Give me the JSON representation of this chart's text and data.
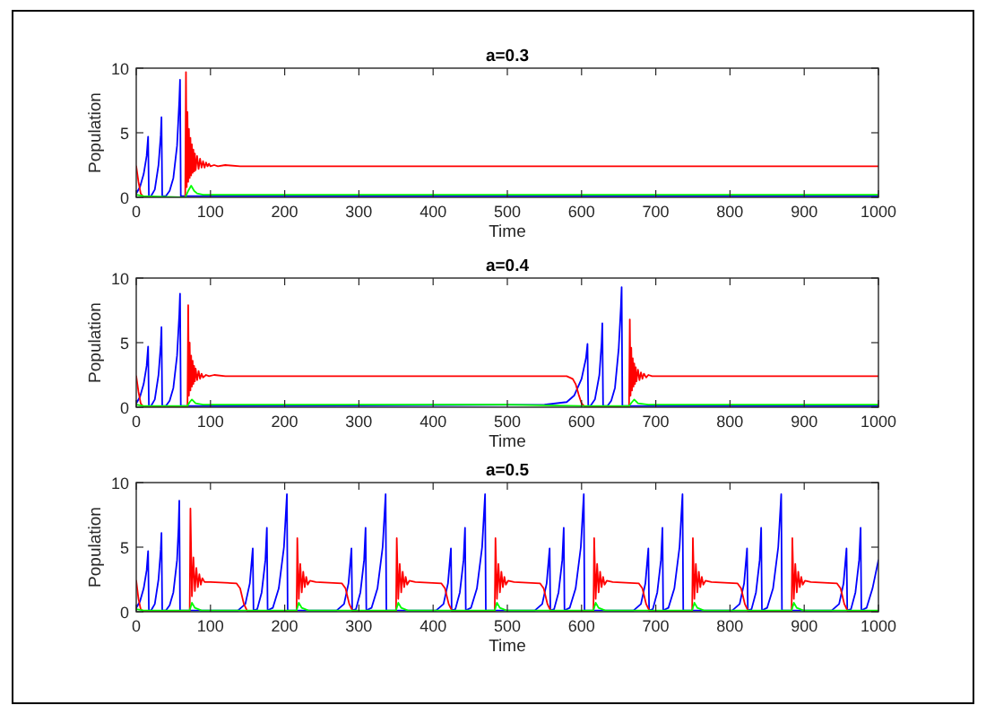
{
  "chart_data": [
    {
      "type": "line",
      "title": "a=0.3",
      "xlabel": "Time",
      "ylabel": "Population",
      "xlim": [
        0,
        1000
      ],
      "ylim": [
        0,
        10
      ],
      "xticks": [
        0,
        100,
        200,
        300,
        400,
        500,
        600,
        700,
        800,
        900,
        1000
      ],
      "yticks": [
        0,
        5,
        10
      ],
      "series": [
        {
          "color": "#0000ff",
          "x": [
            0,
            5,
            10,
            14,
            16,
            17,
            20,
            25,
            30,
            33,
            34,
            35,
            40,
            45,
            50,
            55,
            58,
            59,
            60,
            70,
            100,
            1000
          ],
          "values": [
            0.3,
            0.8,
            1.8,
            3.2,
            4.7,
            0.1,
            0.1,
            0.6,
            2.5,
            4.8,
            6.2,
            0.1,
            0.1,
            0.5,
            1.5,
            4,
            7.5,
            9.1,
            0.1,
            0.1,
            0.1,
            0.1
          ]
        },
        {
          "color": "#ff0000",
          "x": [
            0,
            3,
            6,
            10,
            66,
            67,
            68,
            69,
            70,
            71,
            72,
            73,
            74,
            75,
            76,
            77,
            78,
            79,
            80,
            82,
            84,
            86,
            88,
            90,
            92,
            94,
            96,
            98,
            100,
            105,
            110,
            120,
            140,
            1000
          ],
          "values": [
            2.4,
            1.2,
            0.3,
            0,
            0,
            9.7,
            0.8,
            6.6,
            1.2,
            5.3,
            1.5,
            4.6,
            1.7,
            4.1,
            1.9,
            3.7,
            2,
            3.4,
            2.1,
            3.2,
            2.2,
            3,
            2.3,
            2.8,
            2.3,
            2.7,
            2.4,
            2.6,
            2.4,
            2.5,
            2.4,
            2.5,
            2.4,
            2.4
          ]
        },
        {
          "color": "#00ff00",
          "x": [
            0,
            10,
            60,
            66,
            70,
            74,
            78,
            82,
            90,
            100,
            1000
          ],
          "values": [
            0.2,
            0.1,
            0,
            0,
            0.5,
            0.9,
            0.5,
            0.3,
            0.2,
            0.2,
            0.2
          ]
        }
      ]
    },
    {
      "type": "line",
      "title": "a=0.4",
      "xlabel": "Time",
      "ylabel": "Population",
      "xlim": [
        0,
        1000
      ],
      "ylim": [
        0,
        10
      ],
      "xticks": [
        0,
        100,
        200,
        300,
        400,
        500,
        600,
        700,
        800,
        900,
        1000
      ],
      "yticks": [
        0,
        5,
        10
      ],
      "series": [
        {
          "color": "#0000ff",
          "x": [
            0,
            5,
            10,
            14,
            16,
            17,
            20,
            25,
            30,
            33,
            34,
            35,
            40,
            45,
            50,
            55,
            58,
            59,
            60,
            70,
            100,
            550,
            580,
            590,
            600,
            606,
            608,
            609,
            612,
            618,
            624,
            627,
            628,
            629,
            635,
            640,
            645,
            650,
            653,
            654,
            655,
            665,
            700,
            1000
          ],
          "values": [
            0.3,
            0.8,
            1.8,
            3.2,
            4.7,
            0.1,
            0.1,
            0.6,
            2.5,
            4.8,
            6.2,
            0.1,
            0.1,
            0.5,
            1.5,
            4,
            7.2,
            8.8,
            0.1,
            0.1,
            0.1,
            0.2,
            0.4,
            0.9,
            2.2,
            3.8,
            4.9,
            0.1,
            0.1,
            0.6,
            2.5,
            5,
            6.5,
            0.1,
            0.1,
            0.5,
            1.5,
            4.5,
            7.8,
            9.3,
            0.1,
            0.1,
            0.1,
            0.1
          ]
        },
        {
          "color": "#ff0000",
          "x": [
            0,
            3,
            6,
            10,
            69,
            70,
            71,
            72,
            73,
            74,
            75,
            76,
            77,
            78,
            79,
            80,
            82,
            84,
            86,
            88,
            90,
            94,
            98,
            105,
            120,
            500,
            580,
            588,
            592,
            596,
            600,
            605,
            664,
            665,
            666,
            667,
            668,
            669,
            670,
            671,
            672,
            673,
            674,
            676,
            678,
            680,
            682,
            684,
            687,
            690,
            695,
            700,
            720,
            1000
          ],
          "values": [
            2.4,
            1.2,
            0.3,
            0,
            0,
            7.9,
            0.9,
            5,
            1.3,
            4,
            1.6,
            3.6,
            1.8,
            3.2,
            2,
            3,
            2.1,
            2.8,
            2.2,
            2.6,
            2.3,
            2.5,
            2.4,
            2.5,
            2.4,
            2.4,
            2.4,
            2.2,
            1.8,
            1,
            0.3,
            0,
            0,
            6.8,
            0.9,
            4.6,
            1.3,
            3.8,
            1.6,
            3.4,
            1.8,
            3.1,
            2,
            2.9,
            2.1,
            2.7,
            2.2,
            2.6,
            2.3,
            2.5,
            2.4,
            2.4,
            2.4,
            2.4
          ]
        },
        {
          "color": "#00ff00",
          "x": [
            0,
            10,
            69,
            72,
            75,
            80,
            90,
            500,
            600,
            664,
            668,
            671,
            676,
            690,
            1000
          ],
          "values": [
            0.2,
            0.1,
            0.1,
            0.4,
            0.6,
            0.3,
            0.2,
            0.2,
            0.1,
            0.1,
            0.4,
            0.6,
            0.3,
            0.2,
            0.2
          ]
        }
      ]
    },
    {
      "type": "line",
      "title": "a=0.5",
      "xlabel": "Time",
      "ylabel": "Population",
      "xlim": [
        0,
        1000
      ],
      "ylim": [
        0,
        10
      ],
      "xticks": [
        0,
        100,
        200,
        300,
        400,
        500,
        600,
        700,
        800,
        900,
        1000
      ],
      "yticks": [
        0,
        5,
        10
      ],
      "series": [
        {
          "color": "#0000ff",
          "x": [
            0,
            5,
            10,
            14,
            16,
            17,
            20,
            25,
            30,
            33,
            34,
            35,
            40,
            45,
            50,
            55,
            57,
            58,
            59,
            137,
            147,
            153,
            157,
            158,
            163,
            169,
            174,
            176,
            177,
            184,
            192,
            199,
            203,
            204,
            270,
            280,
            286,
            290,
            291,
            296,
            302,
            307,
            309,
            310,
            317,
            325,
            332,
            336,
            337,
            404,
            414,
            420,
            424,
            425,
            430,
            436,
            441,
            443,
            444,
            451,
            459,
            466,
            470,
            471,
            537,
            547,
            553,
            557,
            558,
            563,
            569,
            574,
            576,
            577,
            584,
            592,
            599,
            603,
            604,
            670,
            680,
            686,
            690,
            691,
            696,
            702,
            707,
            709,
            710,
            717,
            725,
            732,
            736,
            737,
            803,
            813,
            819,
            823,
            824,
            829,
            835,
            840,
            842,
            843,
            850,
            858,
            865,
            869,
            870,
            937,
            947,
            953,
            957,
            958,
            963,
            969,
            974,
            976,
            977,
            984,
            992,
            1000
          ],
          "values": [
            0.3,
            0.8,
            1.8,
            3.2,
            4.7,
            0.1,
            0.1,
            0.6,
            2.5,
            4.8,
            6.1,
            0.1,
            0.1,
            0.5,
            1.5,
            4,
            6.5,
            8.6,
            0.1,
            0.1,
            0.6,
            2.2,
            4.9,
            0.1,
            0.2,
            1.5,
            4,
            6.5,
            0.1,
            0.3,
            1.8,
            5,
            9.1,
            0.1,
            0.1,
            0.6,
            2.2,
            4.9,
            0.1,
            0.2,
            1.5,
            4,
            6.5,
            0.1,
            0.3,
            1.8,
            5,
            9.1,
            0.1,
            0.1,
            0.6,
            2.2,
            4.9,
            0.1,
            0.2,
            1.5,
            4,
            6.5,
            0.1,
            0.3,
            1.8,
            5,
            9.1,
            0.1,
            0.1,
            0.6,
            2.2,
            4.9,
            0.1,
            0.2,
            1.5,
            4,
            6.5,
            0.1,
            0.3,
            1.8,
            5,
            9.1,
            0.1,
            0.1,
            0.6,
            2.2,
            4.9,
            0.1,
            0.2,
            1.5,
            4,
            6.5,
            0.1,
            0.3,
            1.8,
            5,
            9.1,
            0.1,
            0.1,
            0.6,
            2.2,
            4.9,
            0.1,
            0.2,
            1.5,
            4,
            6.5,
            0.1,
            0.3,
            1.8,
            5,
            9.1,
            0.1,
            0.1,
            0.6,
            2.2,
            4.9,
            0.1,
            0.2,
            1.5,
            4,
            6.5,
            0.1,
            0.3,
            1.8,
            4
          ]
        },
        {
          "color": "#ff0000",
          "x": [
            0,
            3,
            6,
            10,
            72,
            73,
            75,
            77,
            79,
            81,
            83,
            85,
            87,
            89,
            92,
            100,
            135,
            140,
            145,
            150,
            216,
            217,
            219,
            221,
            223,
            225,
            227,
            229,
            231,
            234,
            242,
            277,
            282,
            287,
            292,
            350,
            351,
            353,
            355,
            357,
            359,
            361,
            363,
            365,
            368,
            376,
            411,
            416,
            421,
            426,
            483,
            484,
            486,
            488,
            490,
            492,
            494,
            496,
            498,
            501,
            509,
            544,
            549,
            554,
            559,
            616,
            617,
            619,
            621,
            623,
            625,
            627,
            629,
            631,
            634,
            642,
            677,
            682,
            687,
            692,
            749,
            750,
            752,
            754,
            756,
            758,
            760,
            762,
            764,
            767,
            775,
            810,
            815,
            820,
            825,
            883,
            884,
            886,
            888,
            890,
            892,
            894,
            896,
            898,
            901,
            909,
            944,
            949,
            954,
            959,
            1000
          ],
          "values": [
            2.4,
            1,
            0.2,
            0,
            0,
            8,
            1.2,
            4.2,
            1.6,
            3.4,
            1.9,
            2.9,
            2.1,
            2.6,
            2.3,
            2.3,
            2.2,
            1.8,
            0.6,
            0,
            0,
            5.7,
            1,
            3.7,
            1.5,
            3.1,
            1.9,
            2.7,
            2.1,
            2.4,
            2.3,
            2.2,
            1.8,
            0.6,
            0,
            0,
            5.7,
            1,
            3.7,
            1.5,
            3.1,
            1.9,
            2.7,
            2.1,
            2.4,
            2.3,
            2.2,
            1.8,
            0.6,
            0,
            0,
            5.7,
            1,
            3.7,
            1.5,
            3.1,
            1.9,
            2.7,
            2.1,
            2.4,
            2.3,
            2.2,
            1.8,
            0.6,
            0,
            0,
            5.7,
            1,
            3.7,
            1.5,
            3.1,
            1.9,
            2.7,
            2.1,
            2.4,
            2.3,
            2.2,
            1.8,
            0.6,
            0,
            0,
            5.7,
            1,
            3.7,
            1.5,
            3.1,
            1.9,
            2.7,
            2.1,
            2.4,
            2.3,
            2.2,
            1.8,
            0.6,
            0,
            0,
            5.7,
            1,
            3.7,
            1.5,
            3.1,
            1.9,
            2.7,
            2.1,
            2.4,
            2.3,
            2.2,
            1.8,
            0.6,
            0,
            0
          ]
        },
        {
          "color": "#00ff00",
          "x": [
            0,
            10,
            72,
            75,
            79,
            88,
            150,
            216,
            219,
            223,
            232,
            292,
            350,
            353,
            357,
            366,
            426,
            483,
            486,
            490,
            499,
            559,
            616,
            619,
            623,
            632,
            692,
            749,
            752,
            756,
            765,
            825,
            883,
            886,
            890,
            899,
            959,
            1000
          ],
          "values": [
            0.2,
            0.1,
            0.1,
            0.7,
            0.3,
            0.1,
            0.1,
            0.1,
            0.7,
            0.3,
            0.1,
            0.1,
            0.1,
            0.7,
            0.3,
            0.1,
            0.1,
            0.1,
            0.7,
            0.3,
            0.1,
            0.1,
            0.1,
            0.7,
            0.3,
            0.1,
            0.1,
            0.1,
            0.7,
            0.3,
            0.1,
            0.1,
            0.1,
            0.7,
            0.3,
            0.1,
            0.1,
            0.1
          ]
        }
      ]
    }
  ]
}
